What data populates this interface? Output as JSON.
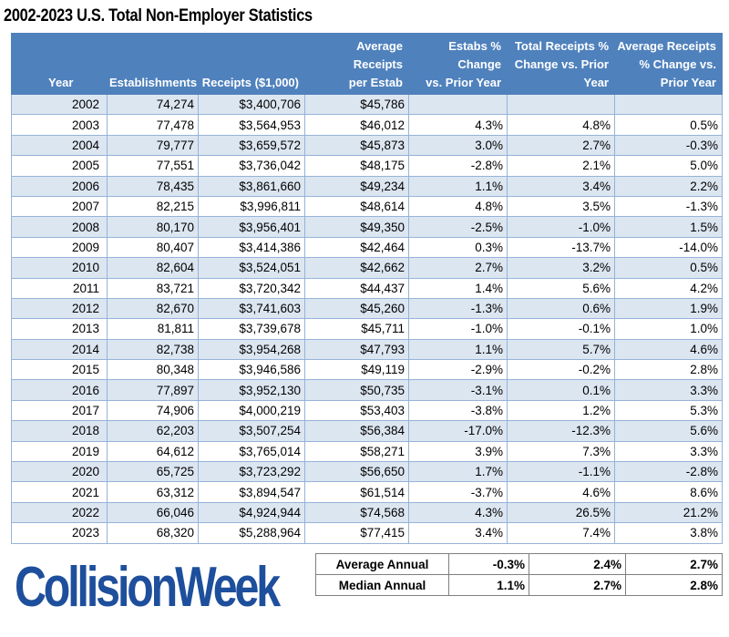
{
  "title": "2002-2023 U.S. Total Non-Employer Statistics",
  "headers": {
    "year": "Year",
    "establishments": "Establishments",
    "receipts": "Receipts ($1,000)",
    "avg_receipts_line1": "Average Receipts",
    "avg_receipts_line2": "per Estab",
    "estabs_change_line1": "Estabs % Change",
    "estabs_change_line2": "vs. Prior Year",
    "total_receipts_change_line1": "Total Receipts %",
    "total_receipts_change_line2": "Change vs. Prior",
    "total_receipts_change_line3": "Year",
    "avg_receipts_change_line1": "Average Receipts",
    "avg_receipts_change_line2": "% Change vs.",
    "avg_receipts_change_line3": "Prior Year"
  },
  "rows": [
    {
      "year": "2002",
      "establishments": "74,274",
      "receipts": "$3,400,706",
      "avg_receipts": "$45,786",
      "estabs_change": "",
      "receipts_change": "",
      "avg_change": ""
    },
    {
      "year": "2003",
      "establishments": "77,478",
      "receipts": "$3,564,953",
      "avg_receipts": "$46,012",
      "estabs_change": "4.3%",
      "receipts_change": "4.8%",
      "avg_change": "0.5%"
    },
    {
      "year": "2004",
      "establishments": "79,777",
      "receipts": "$3,659,572",
      "avg_receipts": "$45,873",
      "estabs_change": "3.0%",
      "receipts_change": "2.7%",
      "avg_change": "-0.3%"
    },
    {
      "year": "2005",
      "establishments": "77,551",
      "receipts": "$3,736,042",
      "avg_receipts": "$48,175",
      "estabs_change": "-2.8%",
      "receipts_change": "2.1%",
      "avg_change": "5.0%"
    },
    {
      "year": "2006",
      "establishments": "78,435",
      "receipts": "$3,861,660",
      "avg_receipts": "$49,234",
      "estabs_change": "1.1%",
      "receipts_change": "3.4%",
      "avg_change": "2.2%"
    },
    {
      "year": "2007",
      "establishments": "82,215",
      "receipts": "$3,996,811",
      "avg_receipts": "$48,614",
      "estabs_change": "4.8%",
      "receipts_change": "3.5%",
      "avg_change": "-1.3%"
    },
    {
      "year": "2008",
      "establishments": "80,170",
      "receipts": "$3,956,401",
      "avg_receipts": "$49,350",
      "estabs_change": "-2.5%",
      "receipts_change": "-1.0%",
      "avg_change": "1.5%"
    },
    {
      "year": "2009",
      "establishments": "80,407",
      "receipts": "$3,414,386",
      "avg_receipts": "$42,464",
      "estabs_change": "0.3%",
      "receipts_change": "-13.7%",
      "avg_change": "-14.0%"
    },
    {
      "year": "2010",
      "establishments": "82,604",
      "receipts": "$3,524,051",
      "avg_receipts": "$42,662",
      "estabs_change": "2.7%",
      "receipts_change": "3.2%",
      "avg_change": "0.5%"
    },
    {
      "year": "2011",
      "establishments": "83,721",
      "receipts": "$3,720,342",
      "avg_receipts": "$44,437",
      "estabs_change": "1.4%",
      "receipts_change": "5.6%",
      "avg_change": "4.2%"
    },
    {
      "year": "2012",
      "establishments": "82,670",
      "receipts": "$3,741,603",
      "avg_receipts": "$45,260",
      "estabs_change": "-1.3%",
      "receipts_change": "0.6%",
      "avg_change": "1.9%"
    },
    {
      "year": "2013",
      "establishments": "81,811",
      "receipts": "$3,739,678",
      "avg_receipts": "$45,711",
      "estabs_change": "-1.0%",
      "receipts_change": "-0.1%",
      "avg_change": "1.0%"
    },
    {
      "year": "2014",
      "establishments": "82,738",
      "receipts": "$3,954,268",
      "avg_receipts": "$47,793",
      "estabs_change": "1.1%",
      "receipts_change": "5.7%",
      "avg_change": "4.6%"
    },
    {
      "year": "2015",
      "establishments": "80,348",
      "receipts": "$3,946,586",
      "avg_receipts": "$49,119",
      "estabs_change": "-2.9%",
      "receipts_change": "-0.2%",
      "avg_change": "2.8%"
    },
    {
      "year": "2016",
      "establishments": "77,897",
      "receipts": "$3,952,130",
      "avg_receipts": "$50,735",
      "estabs_change": "-3.1%",
      "receipts_change": "0.1%",
      "avg_change": "3.3%"
    },
    {
      "year": "2017",
      "establishments": "74,906",
      "receipts": "$4,000,219",
      "avg_receipts": "$53,403",
      "estabs_change": "-3.8%",
      "receipts_change": "1.2%",
      "avg_change": "5.3%"
    },
    {
      "year": "2018",
      "establishments": "62,203",
      "receipts": "$3,507,254",
      "avg_receipts": "$56,384",
      "estabs_change": "-17.0%",
      "receipts_change": "-12.3%",
      "avg_change": "5.6%"
    },
    {
      "year": "2019",
      "establishments": "64,612",
      "receipts": "$3,765,014",
      "avg_receipts": "$58,271",
      "estabs_change": "3.9%",
      "receipts_change": "7.3%",
      "avg_change": "3.3%"
    },
    {
      "year": "2020",
      "establishments": "65,725",
      "receipts": "$3,723,292",
      "avg_receipts": "$56,650",
      "estabs_change": "1.7%",
      "receipts_change": "-1.1%",
      "avg_change": "-2.8%"
    },
    {
      "year": "2021",
      "establishments": "63,312",
      "receipts": "$3,894,547",
      "avg_receipts": "$61,514",
      "estabs_change": "-3.7%",
      "receipts_change": "4.6%",
      "avg_change": "8.6%"
    },
    {
      "year": "2022",
      "establishments": "66,046",
      "receipts": "$4,924,944",
      "avg_receipts": "$74,568",
      "estabs_change": "4.3%",
      "receipts_change": "26.5%",
      "avg_change": "21.2%"
    },
    {
      "year": "2023",
      "establishments": "68,320",
      "receipts": "$5,288,964",
      "avg_receipts": "$77,415",
      "estabs_change": "3.4%",
      "receipts_change": "7.4%",
      "avg_change": "3.8%"
    }
  ],
  "summary": [
    {
      "label": "Average Annual",
      "estabs_change": "-0.3%",
      "receipts_change": "2.4%",
      "avg_change": "2.7%"
    },
    {
      "label": "Median Annual",
      "estabs_change": "1.1%",
      "receipts_change": "2.7%",
      "avg_change": "2.8%"
    }
  ],
  "logo": {
    "text": "CollisionWeek",
    "color": "#1e4f9c"
  },
  "colors": {
    "header_bg": "#4f81bd",
    "band": "#dce6f1",
    "border": "#95b3d7"
  }
}
